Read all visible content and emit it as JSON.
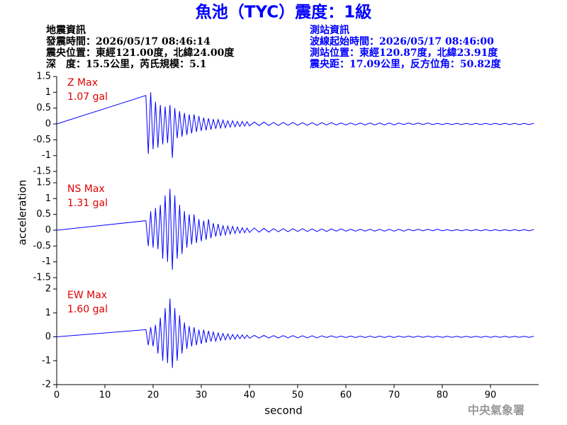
{
  "title": "魚池（TYC）震度：1級",
  "earthquake_info": [
    "地震資訊",
    "發震時間：2026/05/17 08:46:14",
    "震央位置：東經121.00度，北緯24.00度",
    "深　度：15.5公里，芮氏規模：5.1"
  ],
  "station_info": [
    "測站資訊",
    "波線起始時間：2026/05/17 08:46:00",
    "測站位置：東經120.87度，北緯23.91度",
    "震央距：17.09公里，反方位角：50.82度"
  ],
  "ylabel": "acceleration",
  "xlabel": "second",
  "credit": "中央氣象署",
  "chart_data": [
    {
      "type": "line",
      "title": "Z Max",
      "annotation": "1.07 gal",
      "xlim": [
        0,
        100
      ],
      "ylim": [
        -1.5,
        1.5
      ],
      "yticks": [
        -1.5,
        -1,
        -0.5,
        0,
        0.5,
        1,
        1.5
      ],
      "x": [
        0,
        18.5,
        19,
        19.5,
        20,
        20.5,
        21,
        21.5,
        22,
        22.5,
        23,
        23.5,
        24,
        24.5,
        25,
        25.5,
        26,
        26.5,
        27,
        27.5,
        28,
        28.5,
        29,
        29.5,
        30,
        30.5,
        31,
        31.5,
        32,
        32.5,
        33,
        33.5,
        34,
        34.5,
        35,
        35.5,
        36,
        36.5,
        37,
        37.5,
        38,
        38.5,
        39,
        39.5,
        40,
        41,
        42,
        43,
        44,
        45,
        46,
        47,
        48,
        49,
        50,
        51,
        52,
        53,
        54,
        55,
        56,
        57,
        58,
        59,
        60,
        61,
        62,
        63,
        64,
        65,
        66,
        67,
        68,
        69,
        70,
        71,
        72,
        73,
        74,
        75,
        76,
        77,
        78,
        79,
        80,
        81,
        82,
        83,
        84,
        85,
        86,
        87,
        88,
        89,
        90,
        91,
        92,
        93,
        94,
        95,
        96,
        97,
        98,
        99
      ],
      "series": [
        {
          "color": "#0000ff",
          "values": [
            0,
            0.9,
            -0.95,
            1.0,
            -0.8,
            0.7,
            -0.75,
            0.6,
            -0.65,
            0.55,
            -0.6,
            0.6,
            -1.07,
            0.5,
            -0.45,
            0.4,
            -0.4,
            0.35,
            -0.35,
            0.3,
            -0.3,
            0.3,
            -0.25,
            0.25,
            -0.22,
            0.2,
            -0.2,
            0.18,
            -0.18,
            0.15,
            -0.15,
            0.14,
            -0.13,
            0.12,
            -0.12,
            0.1,
            -0.1,
            0.1,
            -0.09,
            0.08,
            -0.08,
            0.08,
            -0.07,
            0.07,
            -0.06,
            0.06,
            -0.05,
            0.06,
            -0.05,
            0.05,
            -0.05,
            0.05,
            -0.04,
            0.05,
            -0.04,
            0.04,
            -0.04,
            0.04,
            -0.04,
            0.04,
            -0.03,
            0.04,
            -0.03,
            0.03,
            -0.03,
            0.03,
            -0.03,
            0.03,
            -0.03,
            0.03,
            -0.03,
            0.03,
            -0.03,
            0.03,
            -0.03,
            0.03,
            -0.02,
            0.03,
            -0.02,
            0.03,
            -0.02,
            0.03,
            -0.02,
            0.02,
            -0.02,
            0.02,
            -0.02,
            0.02,
            -0.02,
            0.02,
            -0.02,
            0.02,
            -0.02,
            0.02,
            -0.02,
            0.02,
            -0.02,
            0.02,
            -0.02,
            0.02,
            -0.02,
            0.02,
            -0.02,
            0.02
          ]
        }
      ]
    },
    {
      "type": "line",
      "title": "NS Max",
      "annotation": "1.31 gal",
      "xlim": [
        0,
        100
      ],
      "ylim": [
        -1.5,
        1.5
      ],
      "yticks": [
        -1.5,
        -1,
        -0.5,
        0,
        0.5,
        1,
        1.5
      ],
      "x": [
        0,
        18.5,
        19,
        19.5,
        20,
        20.5,
        21,
        21.5,
        22,
        22.5,
        23,
        23.5,
        24,
        24.5,
        25,
        25.5,
        26,
        26.5,
        27,
        27.5,
        28,
        28.5,
        29,
        29.5,
        30,
        30.5,
        31,
        31.5,
        32,
        32.5,
        33,
        33.5,
        34,
        34.5,
        35,
        35.5,
        36,
        36.5,
        37,
        37.5,
        38,
        38.5,
        39,
        39.5,
        40,
        41,
        42,
        43,
        44,
        45,
        46,
        47,
        48,
        49,
        50,
        51,
        52,
        53,
        54,
        55,
        56,
        57,
        58,
        59,
        60,
        61,
        62,
        63,
        64,
        65,
        66,
        67,
        68,
        69,
        70,
        71,
        72,
        73,
        74,
        75,
        76,
        77,
        78,
        79,
        80,
        81,
        82,
        83,
        84,
        85,
        86,
        87,
        88,
        89,
        90,
        91,
        92,
        93,
        94,
        95,
        96,
        97,
        98,
        99
      ],
      "series": [
        {
          "color": "#0000ff",
          "values": [
            0,
            0.3,
            -0.5,
            0.6,
            -0.55,
            0.7,
            -0.6,
            0.8,
            -0.9,
            1.1,
            -1.0,
            1.31,
            -1.25,
            1.1,
            -0.9,
            0.8,
            -0.75,
            0.6,
            -0.55,
            0.5,
            -0.45,
            0.5,
            -0.4,
            0.35,
            -0.35,
            0.3,
            -0.3,
            0.35,
            -0.25,
            0.22,
            -0.2,
            0.2,
            -0.18,
            0.15,
            -0.15,
            0.13,
            -0.12,
            0.12,
            -0.1,
            0.1,
            -0.09,
            0.08,
            -0.08,
            0.07,
            -0.07,
            0.07,
            -0.06,
            0.06,
            -0.06,
            0.05,
            -0.05,
            0.05,
            -0.05,
            0.05,
            -0.04,
            0.05,
            -0.04,
            0.04,
            -0.04,
            0.04,
            -0.04,
            0.04,
            -0.03,
            0.04,
            -0.03,
            0.03,
            -0.03,
            0.03,
            -0.03,
            0.03,
            -0.03,
            0.03,
            -0.03,
            0.03,
            -0.03,
            0.03,
            -0.03,
            0.03,
            -0.02,
            0.03,
            -0.02,
            0.03,
            -0.02,
            0.03,
            -0.02,
            0.02,
            -0.02,
            0.02,
            -0.02,
            0.02,
            -0.02,
            0.02,
            -0.02,
            0.02,
            -0.02,
            0.02,
            -0.02,
            0.02,
            -0.02,
            0.02,
            -0.02,
            0.02,
            -0.02,
            0.02
          ]
        }
      ]
    },
    {
      "type": "line",
      "title": "EW Max",
      "annotation": "1.60 gal",
      "xlim": [
        0,
        100
      ],
      "ylim": [
        -2,
        2
      ],
      "yticks": [
        -2,
        -1,
        0,
        1,
        2
      ],
      "xticks": [
        0,
        10,
        20,
        30,
        40,
        50,
        60,
        70,
        80,
        90
      ],
      "x": [
        0,
        18.5,
        19,
        19.5,
        20,
        20.5,
        21,
        21.5,
        22,
        22.5,
        23,
        23.5,
        24,
        24.5,
        25,
        25.5,
        26,
        26.5,
        27,
        27.5,
        28,
        28.5,
        29,
        29.5,
        30,
        30.5,
        31,
        31.5,
        32,
        32.5,
        33,
        33.5,
        34,
        34.5,
        35,
        35.5,
        36,
        36.5,
        37,
        37.5,
        38,
        38.5,
        39,
        39.5,
        40,
        41,
        42,
        43,
        44,
        45,
        46,
        47,
        48,
        49,
        50,
        51,
        52,
        53,
        54,
        55,
        56,
        57,
        58,
        59,
        60,
        61,
        62,
        63,
        64,
        65,
        66,
        67,
        68,
        69,
        70,
        71,
        72,
        73,
        74,
        75,
        76,
        77,
        78,
        79,
        80,
        81,
        82,
        83,
        84,
        85,
        86,
        87,
        88,
        89,
        90,
        91,
        92,
        93,
        94,
        95,
        96,
        97,
        98,
        99
      ],
      "series": [
        {
          "color": "#0000ff",
          "values": [
            0,
            0.3,
            -0.35,
            0.4,
            -0.4,
            0.5,
            -0.7,
            0.8,
            -1.0,
            1.2,
            -1.1,
            1.6,
            -1.3,
            1.2,
            -1.0,
            0.9,
            -0.7,
            0.6,
            -0.5,
            0.45,
            -0.4,
            0.4,
            -0.35,
            0.3,
            -0.3,
            0.3,
            -0.25,
            0.25,
            -0.2,
            0.2,
            -0.18,
            0.16,
            -0.15,
            0.14,
            -0.13,
            0.12,
            -0.11,
            0.1,
            -0.1,
            0.09,
            -0.08,
            0.08,
            -0.07,
            0.07,
            -0.06,
            0.06,
            -0.05,
            0.06,
            -0.05,
            0.05,
            -0.05,
            0.05,
            -0.04,
            0.05,
            -0.04,
            0.04,
            -0.04,
            0.04,
            -0.04,
            0.04,
            -0.03,
            0.04,
            -0.03,
            0.03,
            -0.03,
            0.03,
            -0.03,
            0.03,
            -0.03,
            0.03,
            -0.03,
            0.03,
            -0.03,
            0.03,
            -0.03,
            0.03,
            -0.02,
            0.03,
            -0.02,
            0.03,
            -0.02,
            0.03,
            -0.02,
            0.02,
            -0.02,
            0.02,
            -0.02,
            0.02,
            -0.02,
            0.02,
            -0.02,
            0.02,
            -0.02,
            0.02,
            -0.02,
            0.02,
            -0.02,
            0.02,
            -0.02,
            0.02,
            -0.02,
            0.02,
            -0.02,
            0.02
          ]
        }
      ]
    }
  ]
}
